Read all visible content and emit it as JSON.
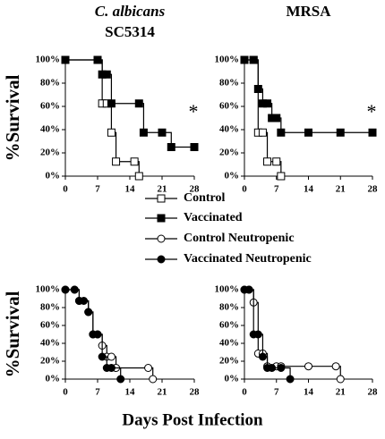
{
  "chart_data": [
    {
      "type": "line",
      "step": true,
      "title": "C. albicans",
      "title_italic": true,
      "subtitle": "SC5314",
      "ylabel": "%Survival",
      "annotation": "*",
      "xlim": [
        0,
        28
      ],
      "xticks": [
        0,
        7,
        14,
        21,
        28
      ],
      "ylim": [
        0,
        100
      ],
      "yticks": [
        {
          "value": 0,
          "label": "0%"
        },
        {
          "value": 20,
          "label": "20%"
        },
        {
          "value": 40,
          "label": "40%"
        },
        {
          "value": 60,
          "label": "60%"
        },
        {
          "value": 80,
          "label": "80%"
        },
        {
          "value": 100,
          "label": "100%"
        }
      ],
      "series": [
        {
          "name": "Control",
          "color": "#000000",
          "marker": "square",
          "filled": false,
          "x": [
            0,
            7,
            8,
            9,
            10,
            11,
            15,
            16
          ],
          "values": [
            100,
            100,
            62.5,
            62.5,
            37.5,
            12.5,
            12.5,
            0
          ]
        },
        {
          "name": "Vaccinated",
          "color": "#000000",
          "marker": "square",
          "filled": true,
          "x": [
            0,
            7,
            8,
            9,
            10,
            16,
            17,
            21,
            23,
            28
          ],
          "values": [
            100,
            100,
            87.5,
            87.5,
            62.5,
            62.5,
            37.5,
            37.5,
            25,
            25
          ]
        }
      ]
    },
    {
      "type": "line",
      "step": true,
      "title": "MRSA",
      "annotation": "*",
      "xlim": [
        0,
        28
      ],
      "xticks": [
        0,
        7,
        14,
        21,
        28
      ],
      "ylim": [
        0,
        100
      ],
      "yticks": [
        {
          "value": 0,
          "label": "0%"
        },
        {
          "value": 20,
          "label": "20%"
        },
        {
          "value": 40,
          "label": "40%"
        },
        {
          "value": 60,
          "label": "60%"
        },
        {
          "value": 80,
          "label": "80%"
        },
        {
          "value": 100,
          "label": "100%"
        }
      ],
      "series": [
        {
          "name": "Control",
          "color": "#000000",
          "marker": "square",
          "filled": false,
          "x": [
            0,
            2,
            3,
            4,
            5,
            7,
            8
          ],
          "values": [
            100,
            100,
            37.5,
            37.5,
            12.5,
            12.5,
            0
          ]
        },
        {
          "name": "Vaccinated",
          "color": "#000000",
          "marker": "square",
          "filled": true,
          "x": [
            0,
            2,
            3,
            4,
            5,
            6,
            7,
            8,
            14,
            21,
            28
          ],
          "values": [
            100,
            100,
            75,
            62.5,
            62.5,
            50,
            50,
            37.5,
            37.5,
            37.5,
            37.5
          ]
        }
      ]
    },
    {
      "type": "line",
      "step": true,
      "ylabel": "%Survival",
      "xlabel": "Days Post Infection",
      "xlim": [
        0,
        28
      ],
      "xticks": [
        0,
        7,
        14,
        21,
        28
      ],
      "ylim": [
        0,
        100
      ],
      "yticks": [
        {
          "value": 0,
          "label": "0%"
        },
        {
          "value": 20,
          "label": "20%"
        },
        {
          "value": 40,
          "label": "40%"
        },
        {
          "value": 60,
          "label": "60%"
        },
        {
          "value": 80,
          "label": "80%"
        },
        {
          "value": 100,
          "label": "100%"
        }
      ],
      "series": [
        {
          "name": "Control Neutropenic",
          "color": "#000000",
          "marker": "circle",
          "filled": false,
          "x": [
            0,
            2,
            3,
            5,
            6,
            7,
            8,
            9,
            10,
            11,
            18,
            19
          ],
          "values": [
            100,
            100,
            87.5,
            75,
            50,
            50,
            37.5,
            25,
            25,
            12.5,
            12.5,
            0
          ]
        },
        {
          "name": "Vaccinated Neutropenic",
          "color": "#000000",
          "marker": "circle",
          "filled": true,
          "x": [
            0,
            2,
            3,
            4,
            5,
            6,
            7,
            8,
            9,
            10,
            12
          ],
          "values": [
            100,
            100,
            87.5,
            87.5,
            75,
            50,
            50,
            25,
            12.5,
            12.5,
            0
          ]
        }
      ]
    },
    {
      "type": "line",
      "step": true,
      "xlim": [
        0,
        28
      ],
      "xticks": [
        0,
        7,
        14,
        21,
        28
      ],
      "ylim": [
        0,
        100
      ],
      "yticks": [
        {
          "value": 0,
          "label": "0%"
        },
        {
          "value": 20,
          "label": "20%"
        },
        {
          "value": 40,
          "label": "40%"
        },
        {
          "value": 60,
          "label": "60%"
        },
        {
          "value": 80,
          "label": "80%"
        },
        {
          "value": 100,
          "label": "100%"
        }
      ],
      "series": [
        {
          "name": "Control Neutropenic",
          "color": "#000000",
          "marker": "circle",
          "filled": false,
          "x": [
            0,
            1,
            2,
            3,
            4,
            5,
            7,
            8,
            14,
            20,
            21
          ],
          "values": [
            100,
            100,
            85.7,
            28.6,
            28.6,
            14.3,
            14.3,
            14.3,
            14.3,
            14.3,
            0
          ]
        },
        {
          "name": "Vaccinated Neutropenic",
          "color": "#000000",
          "marker": "circle",
          "filled": true,
          "x": [
            0,
            1,
            2,
            3,
            4,
            5,
            6,
            8,
            10
          ],
          "values": [
            100,
            100,
            50,
            50,
            25,
            12.5,
            12.5,
            12.5,
            0
          ]
        }
      ]
    }
  ]
}
